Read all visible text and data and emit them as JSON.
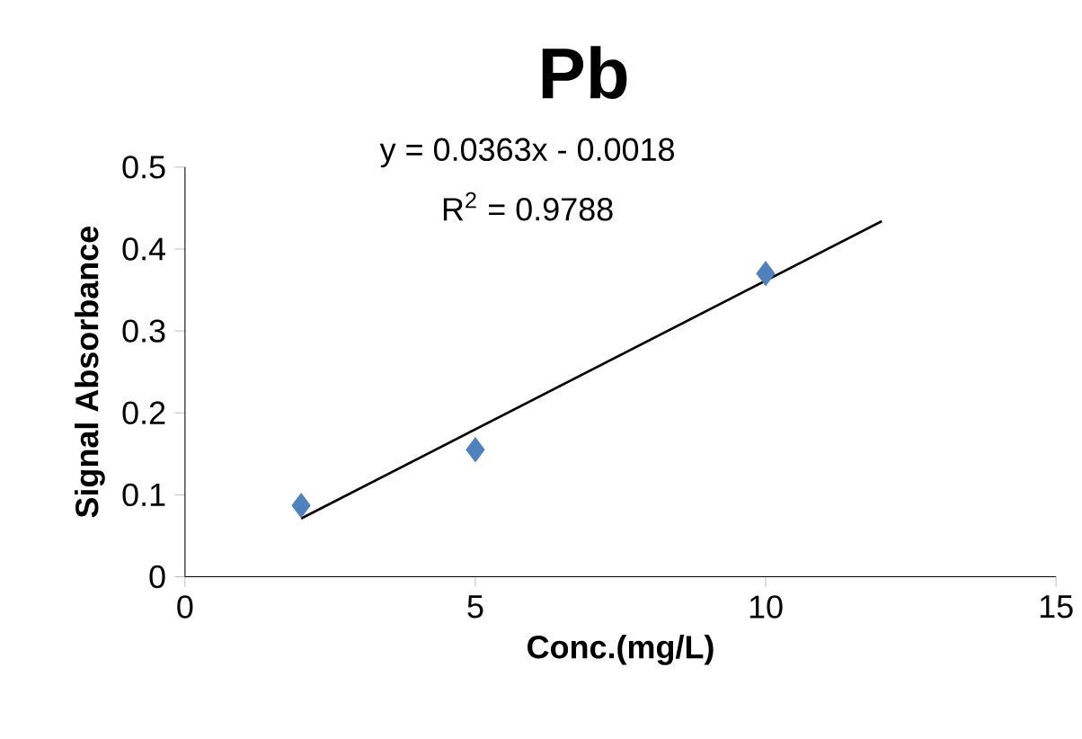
{
  "chart_data": {
    "type": "scatter",
    "title": "Pb",
    "xlabel": "Conc.(mg/L)",
    "ylabel": "Signal Absorbance",
    "xlim": [
      0,
      15
    ],
    "ylim": [
      0,
      0.5
    ],
    "xticks": [
      0,
      5,
      10,
      15
    ],
    "yticks": [
      0,
      0.1,
      0.2,
      0.3,
      0.4,
      0.5
    ],
    "grid": false,
    "annotations": [
      "y = 0.0363x - 0.0018",
      "R$^{2}$ = 0.9788"
    ],
    "series": [
      {
        "color": "#4f81bd",
        "marker": "diamond",
        "x": [
          2,
          5,
          10
        ],
        "values": [
          0.087,
          0.155,
          0.37
        ]
      },
      {
        "type": "line",
        "color": "#000000",
        "marker": "none",
        "line_style": "solid",
        "x": [
          2,
          12
        ],
        "values": [
          0.071,
          0.434
        ]
      }
    ]
  }
}
